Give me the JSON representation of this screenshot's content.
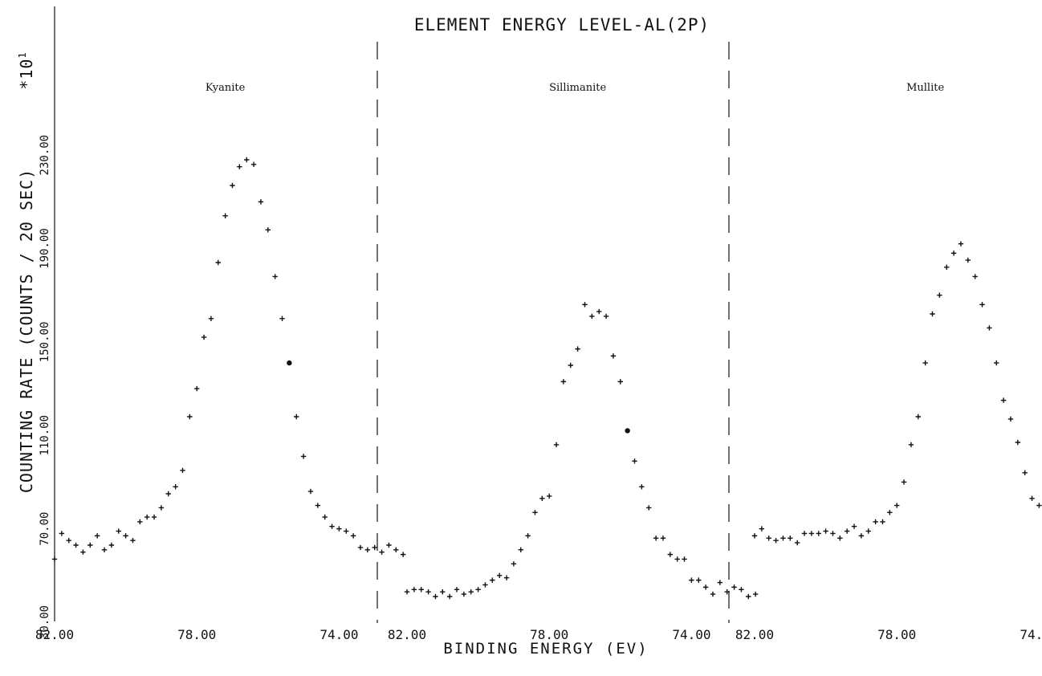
{
  "chart_data": {
    "type": "scatter",
    "title": "ELEMENT ENERGY LEVEL-AL(2P)",
    "xlabel": "BINDING ENERGY (EV)",
    "ylabel": "COUNTING RATE (COUNTS / 20 SEC)",
    "y_multiplier": "*10",
    "y_multiplier_exp": "1",
    "xlim": [
      82.0,
      71.0
    ],
    "ylim": [
      30,
      250
    ],
    "x_ticks": [
      82.0,
      78.0,
      74.0
    ],
    "x_tick_labels": [
      "82.00",
      "78.00",
      "74.00"
    ],
    "y_ticks": [
      30,
      70,
      110,
      150,
      190,
      230
    ],
    "y_tick_labels": [
      "30.00",
      "70.00",
      "110.00",
      "150.00",
      "190.00",
      "230.00"
    ],
    "panels": [
      {
        "name": "Kyanite",
        "x": [
          82.0,
          81.8,
          81.6,
          81.4,
          81.2,
          81.0,
          80.8,
          80.6,
          80.4,
          80.2,
          80.0,
          79.8,
          79.6,
          79.4,
          79.2,
          79.0,
          78.8,
          78.6,
          78.4,
          78.2,
          78.0,
          77.8,
          77.6,
          77.4,
          77.2,
          77.0,
          76.8,
          76.6,
          76.4,
          76.2,
          76.0,
          75.8,
          75.6,
          75.4,
          75.2,
          75.0,
          74.8,
          74.6,
          74.4,
          74.2,
          74.0,
          73.8,
          73.6,
          73.4,
          73.2,
          73.0,
          72.8,
          72.6,
          72.4,
          72.2
        ],
        "y": [
          57,
          68,
          65,
          63,
          60,
          63,
          67,
          61,
          63,
          69,
          67,
          65,
          73,
          75,
          75,
          79,
          85,
          88,
          95,
          118,
          130,
          152,
          160,
          184,
          204,
          217,
          225,
          228,
          226,
          210,
          198,
          178,
          160,
          141,
          118,
          101,
          86,
          80,
          75,
          71,
          70,
          69,
          67,
          62,
          61,
          62,
          60,
          63,
          61,
          59
        ],
        "highlight": [
          false,
          false,
          false,
          false,
          false,
          false,
          false,
          false,
          false,
          false,
          false,
          false,
          false,
          false,
          false,
          false,
          false,
          false,
          false,
          false,
          false,
          false,
          false,
          false,
          false,
          false,
          false,
          false,
          false,
          false,
          false,
          false,
          false,
          true,
          false,
          false,
          false,
          false,
          false,
          false,
          false,
          false,
          false,
          false,
          false,
          false,
          false,
          false,
          false,
          false
        ]
      },
      {
        "name": "Sillimanite",
        "x": [
          82.0,
          81.8,
          81.6,
          81.4,
          81.2,
          81.0,
          80.8,
          80.6,
          80.4,
          80.2,
          80.0,
          79.8,
          79.6,
          79.4,
          79.2,
          79.0,
          78.8,
          78.6,
          78.4,
          78.2,
          78.0,
          77.8,
          77.6,
          77.4,
          77.2,
          77.0,
          76.8,
          76.6,
          76.4,
          76.2,
          76.0,
          75.8,
          75.6,
          75.4,
          75.2,
          75.0,
          74.8,
          74.6,
          74.4,
          74.2,
          74.0,
          73.8,
          73.6,
          73.4,
          73.2,
          73.0,
          72.8,
          72.6,
          72.4,
          72.2
        ],
        "y": [
          43,
          44,
          44,
          43,
          41,
          43,
          41,
          44,
          42,
          43,
          44,
          46,
          48,
          50,
          49,
          55,
          61,
          67,
          77,
          83,
          84,
          106,
          133,
          140,
          147,
          166,
          161,
          163,
          161,
          144,
          133,
          112,
          99,
          88,
          79,
          66,
          66,
          59,
          57,
          57,
          48,
          48,
          45,
          42,
          47,
          43,
          45,
          44,
          41,
          42
        ],
        "highlight": [
          false,
          false,
          false,
          false,
          false,
          false,
          false,
          false,
          false,
          false,
          false,
          false,
          false,
          false,
          false,
          false,
          false,
          false,
          false,
          false,
          false,
          false,
          false,
          false,
          false,
          false,
          false,
          false,
          false,
          false,
          false,
          true,
          false,
          false,
          false,
          false,
          false,
          false,
          false,
          false,
          false,
          false,
          false,
          false,
          false,
          false,
          false,
          false,
          false,
          false
        ]
      },
      {
        "name": "Mullite",
        "x": [
          82.0,
          81.8,
          81.6,
          81.4,
          81.2,
          81.0,
          80.8,
          80.6,
          80.4,
          80.2,
          80.0,
          79.8,
          79.6,
          79.4,
          79.2,
          79.0,
          78.8,
          78.6,
          78.4,
          78.2,
          78.0,
          77.8,
          77.6,
          77.4,
          77.2,
          77.0,
          76.8,
          76.6,
          76.4,
          76.2,
          76.0,
          75.8,
          75.6,
          75.4,
          75.2,
          75.0,
          74.8,
          74.6,
          74.4,
          74.2,
          74.0,
          73.8,
          73.6,
          73.4,
          73.2,
          73.0,
          72.8,
          72.6,
          72.4,
          72.2
        ],
        "y": [
          67,
          70,
          66,
          65,
          66,
          66,
          64,
          68,
          68,
          68,
          69,
          68,
          66,
          69,
          71,
          67,
          69,
          73,
          73,
          77,
          80,
          90,
          106,
          118,
          141,
          162,
          170,
          182,
          188,
          192,
          185,
          178,
          166,
          156,
          141,
          125,
          117,
          107,
          94,
          83,
          80,
          73,
          70,
          69,
          67,
          68,
          67,
          69,
          67,
          69
        ],
        "highlight": [
          false,
          false,
          false,
          false,
          false,
          false,
          false,
          false,
          false,
          false,
          false,
          false,
          false,
          false,
          false,
          false,
          false,
          false,
          false,
          false,
          false,
          false,
          false,
          false,
          false,
          false,
          false,
          false,
          false,
          false,
          false,
          false,
          false,
          false,
          false,
          false,
          false,
          false,
          false,
          false,
          false,
          false,
          false,
          false,
          false,
          false,
          false,
          false,
          false,
          false
        ]
      }
    ]
  }
}
